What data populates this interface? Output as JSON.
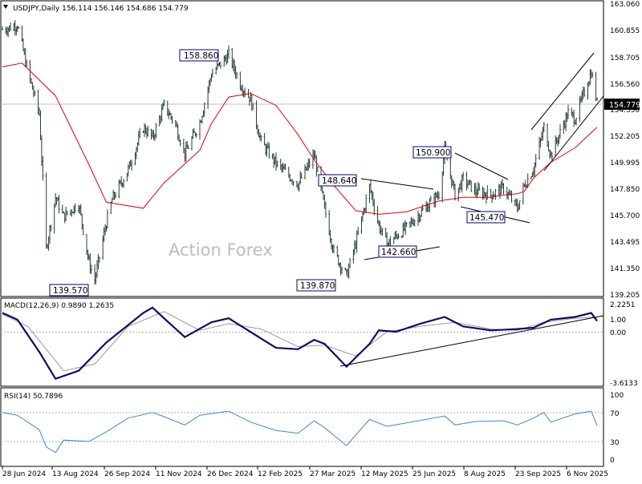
{
  "colors": {
    "price": "#263f3a",
    "ma": "#e60000",
    "macd": "#0d0d66",
    "signal": "#999999",
    "rsi": "#3b87d9",
    "box_border": "#000080",
    "price_tag_bg": "#000000",
    "price_tag_text": "#ffffff",
    "watermark": "#bdbdbd"
  },
  "chart_data": [
    {
      "type": "line",
      "title": "USDJPY,Daily  156.114 156.146 154.686 154.779",
      "watermark": "Action Forex",
      "current_price": "154.779",
      "ylim": [
        139.0,
        163.06
      ],
      "y_ticks": [
        "163.060",
        "160.855",
        "158.705",
        "156.560",
        "154.350",
        "152.205",
        "149.995",
        "147.850",
        "145.700",
        "143.495",
        "141.350",
        "139.205"
      ],
      "x_ticks": [
        "28 Jun 2024",
        "13 Aug 2024",
        "26 Sep 2024",
        "11 Nov 2024",
        "26 Dec 2024",
        "12 Feb 2025",
        "27 Mar 2025",
        "12 May 2025",
        "25 Jun 2025",
        "8 Aug 2025",
        "23 Sep 2025",
        "6 Nov 2025"
      ],
      "series": [
        {
          "role": "price",
          "x": [
            "2024-06-28",
            "2024-07-03",
            "2024-07-11",
            "2024-07-20",
            "2024-07-30",
            "2024-08-05",
            "2024-08-13",
            "2024-08-20",
            "2024-09-02",
            "2024-09-11",
            "2024-09-16",
            "2024-09-26",
            "2024-10-01",
            "2024-10-15",
            "2024-10-28",
            "2024-11-05",
            "2024-11-15",
            "2024-11-25",
            "2024-12-03",
            "2024-12-16",
            "2024-12-26",
            "2025-01-10",
            "2025-01-20",
            "2025-01-29",
            "2025-02-07",
            "2025-02-20",
            "2025-03-11",
            "2025-03-25",
            "2025-04-03",
            "2025-04-11",
            "2025-04-22",
            "2025-04-30",
            "2025-05-12",
            "2025-05-20",
            "2025-05-27",
            "2025-06-04",
            "2025-06-13",
            "2025-06-25",
            "2025-07-11",
            "2025-07-16",
            "2025-07-25",
            "2025-08-01",
            "2025-08-12",
            "2025-08-25",
            "2025-09-05",
            "2025-09-17",
            "2025-09-23",
            "2025-10-01",
            "2025-10-10",
            "2025-10-16",
            "2025-10-31",
            "2025-11-06",
            "2025-11-20",
            "2025-11-25"
          ],
          "values": [
            160.9,
            161.0,
            161.3,
            157.4,
            153.9,
            142.8,
            147.0,
            145.4,
            146.5,
            141.6,
            140.2,
            144.9,
            146.8,
            149.3,
            152.8,
            151.9,
            154.6,
            153.0,
            150.6,
            153.2,
            157.2,
            158.8,
            156.4,
            155.1,
            151.6,
            149.8,
            148.1,
            150.5,
            146.1,
            142.5,
            140.5,
            143.2,
            147.9,
            144.7,
            143.1,
            143.8,
            144.5,
            145.7,
            147.3,
            150.9,
            147.2,
            148.5,
            147.5,
            147.2,
            147.8,
            146.1,
            148.0,
            149.4,
            152.8,
            150.5,
            154.0,
            153.5,
            157.4,
            154.8
          ]
        },
        {
          "role": "moving-average",
          "x": [
            "2024-06-28",
            "2024-07-15",
            "2024-08-13",
            "2024-09-11",
            "2024-09-26",
            "2024-10-28",
            "2024-11-15",
            "2024-12-16",
            "2024-12-26",
            "2025-01-10",
            "2025-01-29",
            "2025-02-20",
            "2025-03-11",
            "2025-03-25",
            "2025-04-11",
            "2025-04-30",
            "2025-05-20",
            "2025-06-13",
            "2025-07-11",
            "2025-08-01",
            "2025-08-25",
            "2025-09-05",
            "2025-09-17",
            "2025-09-23",
            "2025-10-01",
            "2025-10-16",
            "2025-11-06",
            "2025-11-25"
          ],
          "values": [
            157.8,
            158.1,
            155.4,
            149.7,
            146.6,
            146.1,
            148.2,
            150.9,
            153.1,
            155.3,
            155.6,
            154.6,
            152.2,
            150.1,
            148.0,
            145.9,
            145.6,
            145.8,
            146.7,
            147.0,
            147.0,
            147.2,
            147.3,
            147.5,
            148.6,
            149.9,
            151.1,
            152.8
          ]
        }
      ],
      "annotations": [
        "158.860",
        "139.570",
        "139.870",
        "148.640",
        "142.660",
        "150.900",
        "145.470"
      ]
    },
    {
      "type": "line",
      "title": "MACD(12,26,9) 0.9890 1.2635",
      "ylim": [
        -3.6133,
        2.2251
      ],
      "y_ticks": [
        "2.2251",
        "1.00",
        "0.00",
        "-3.6133"
      ],
      "series": [
        {
          "role": "macd",
          "x": [
            "2024-06-28",
            "2024-07-11",
            "2024-07-30",
            "2024-08-13",
            "2024-09-02",
            "2024-09-26",
            "2024-10-28",
            "2024-11-05",
            "2024-11-15",
            "2024-12-03",
            "2024-12-26",
            "2025-01-10",
            "2025-02-07",
            "2025-02-20",
            "2025-03-11",
            "2025-03-25",
            "2025-04-03",
            "2025-04-22",
            "2025-05-12",
            "2025-05-20",
            "2025-06-04",
            "2025-06-25",
            "2025-07-16",
            "2025-08-01",
            "2025-08-25",
            "2025-09-17",
            "2025-10-01",
            "2025-10-16",
            "2025-11-06",
            "2025-11-20",
            "2025-11-25"
          ],
          "values": [
            1.6,
            1.1,
            -1.3,
            -3.3,
            -2.7,
            -0.6,
            1.6,
            2.0,
            1.2,
            -0.2,
            0.9,
            1.2,
            -0.3,
            -1.0,
            -1.1,
            -0.4,
            -0.7,
            -2.4,
            -0.7,
            0.3,
            0.2,
            0.8,
            1.3,
            0.6,
            0.3,
            0.4,
            0.5,
            1.1,
            1.3,
            1.6,
            1.0
          ]
        },
        {
          "role": "signal",
          "x": [
            "2024-06-28",
            "2024-07-20",
            "2024-08-20",
            "2024-09-16",
            "2024-10-15",
            "2024-11-15",
            "2024-12-16",
            "2025-01-10",
            "2025-02-07",
            "2025-03-11",
            "2025-04-03",
            "2025-04-30",
            "2025-05-27",
            "2025-06-25",
            "2025-07-25",
            "2025-08-25",
            "2025-09-17",
            "2025-10-10",
            "2025-11-06",
            "2025-11-25"
          ],
          "values": [
            1.5,
            0.6,
            -2.7,
            -2.2,
            0.6,
            1.7,
            0.3,
            0.8,
            0.4,
            -0.9,
            -0.8,
            -1.6,
            0.2,
            0.6,
            0.9,
            0.4,
            0.3,
            0.9,
            1.2,
            1.3
          ]
        }
      ]
    },
    {
      "type": "line",
      "title": "RSI(14) 50.7896",
      "ylim": [
        0,
        100
      ],
      "y_ticks": [
        "100",
        "70",
        "30",
        "0"
      ],
      "series": [
        {
          "role": "rsi",
          "x": [
            "2024-06-28",
            "2024-07-11",
            "2024-07-30",
            "2024-08-05",
            "2024-08-13",
            "2024-08-20",
            "2024-09-11",
            "2024-09-26",
            "2024-10-15",
            "2024-11-05",
            "2024-11-15",
            "2024-12-03",
            "2024-12-16",
            "2025-01-10",
            "2025-01-29",
            "2025-02-20",
            "2025-03-11",
            "2025-03-25",
            "2025-04-03",
            "2025-04-22",
            "2025-05-12",
            "2025-05-27",
            "2025-06-13",
            "2025-07-16",
            "2025-07-25",
            "2025-08-12",
            "2025-09-05",
            "2025-09-17",
            "2025-10-01",
            "2025-10-10",
            "2025-10-16",
            "2025-11-06",
            "2025-11-20",
            "2025-11-25"
          ],
          "values": [
            70,
            66,
            45,
            20,
            12,
            30,
            28,
            42,
            62,
            70,
            64,
            52,
            66,
            72,
            56,
            44,
            40,
            58,
            48,
            22,
            60,
            50,
            55,
            65,
            52,
            57,
            58,
            52,
            62,
            70,
            56,
            68,
            72,
            51
          ]
        }
      ]
    }
  ]
}
